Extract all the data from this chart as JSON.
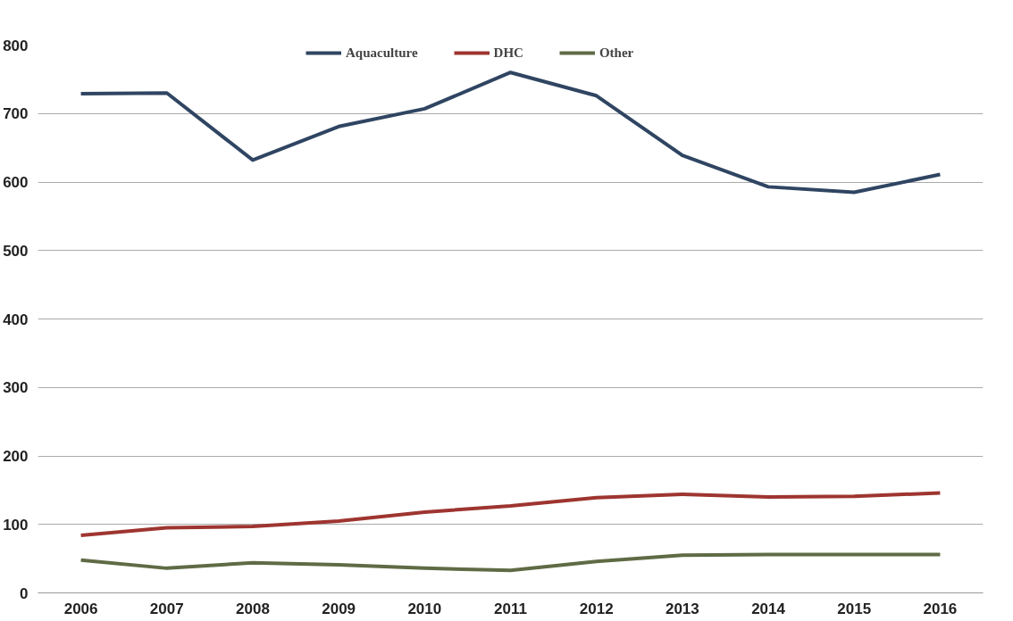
{
  "chart_data": {
    "type": "line",
    "categories": [
      "2006",
      "2007",
      "2008",
      "2009",
      "2010",
      "2011",
      "2012",
      "2013",
      "2014",
      "2015",
      "2016"
    ],
    "series": [
      {
        "name": "Aquaculture",
        "color": "#2f4562",
        "values": [
          729,
          730,
          632,
          681,
          707,
          760,
          726,
          639,
          593,
          585,
          611
        ]
      },
      {
        "name": "DHC",
        "color": "#9e3530",
        "values": [
          84,
          95,
          97,
          105,
          118,
          127,
          139,
          144,
          140,
          141,
          146
        ]
      },
      {
        "name": "Other",
        "color": "#5f6b45",
        "values": [
          48,
          36,
          44,
          41,
          36,
          33,
          46,
          55,
          56,
          56,
          56
        ]
      }
    ],
    "ylim": [
      0,
      800
    ],
    "yticks": [
      0,
      100,
      200,
      300,
      400,
      500,
      600,
      700,
      800
    ],
    "grid": "y",
    "legend": "top",
    "marker": "none",
    "line_style": "solid"
  }
}
